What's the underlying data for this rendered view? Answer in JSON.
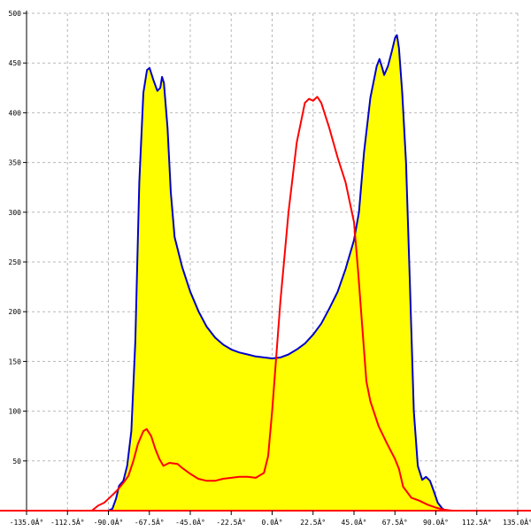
{
  "chart_data": {
    "type": "area",
    "title": "",
    "xlabel": "",
    "ylabel": "",
    "xlim": [
      -135,
      135
    ],
    "ylim": [
      0,
      500
    ],
    "grid": true,
    "x_ticks": [
      -135,
      -112.5,
      -90,
      -67.5,
      -45,
      -22.5,
      0,
      22.5,
      45,
      67.5,
      90,
      112.5,
      135
    ],
    "x_tick_labels": [
      "-135.0Â°",
      "-112.5Â°",
      "-90.0Â°",
      "-67.5Â°",
      "-45.0Â°",
      "-22.5Â°",
      "0.0Â°",
      "22.5Â°",
      "45.0Â°",
      "67.5Â°",
      "90.0Â°",
      "112.5Â°",
      "135.0Â°"
    ],
    "y_ticks": [
      50,
      100,
      150,
      200,
      250,
      300,
      350,
      400,
      450,
      500
    ],
    "y_tick_labels": [
      "50",
      "100",
      "150",
      "200",
      "250",
      "300",
      "350",
      "400",
      "450",
      "500"
    ],
    "series": [
      {
        "color": "#0000cc",
        "fill": "#ffff00",
        "points": [
          [
            -135,
            0
          ],
          [
            -90,
            0
          ],
          [
            -87.8,
            2
          ],
          [
            -85.8,
            12
          ],
          [
            -84.1,
            25
          ],
          [
            -81.8,
            30
          ],
          [
            -79.7,
            45
          ],
          [
            -77.4,
            80
          ],
          [
            -75.2,
            170
          ],
          [
            -73.0,
            330
          ],
          [
            -70.8,
            420
          ],
          [
            -68.8,
            443
          ],
          [
            -67.4,
            445
          ],
          [
            -65.3,
            433
          ],
          [
            -63.1,
            422
          ],
          [
            -61.5,
            425
          ],
          [
            -60.5,
            436
          ],
          [
            -59.5,
            430
          ],
          [
            -57.5,
            385
          ],
          [
            -55.7,
            320
          ],
          [
            -53.6,
            275
          ],
          [
            -49.5,
            245
          ],
          [
            -45.0,
            220
          ],
          [
            -40.4,
            200
          ],
          [
            -36.0,
            185
          ],
          [
            -31.4,
            174
          ],
          [
            -27.0,
            167
          ],
          [
            -22.5,
            162
          ],
          [
            -18.0,
            159
          ],
          [
            -13.5,
            157
          ],
          [
            -9.0,
            155
          ],
          [
            -4.5,
            154
          ],
          [
            0,
            153
          ],
          [
            4.5,
            154
          ],
          [
            9.0,
            157
          ],
          [
            13.5,
            162
          ],
          [
            18.0,
            168
          ],
          [
            22.5,
            177
          ],
          [
            27.0,
            188
          ],
          [
            31.4,
            203
          ],
          [
            36.0,
            220
          ],
          [
            40.4,
            243
          ],
          [
            45.0,
            272
          ],
          [
            47.7,
            300
          ],
          [
            50.5,
            360
          ],
          [
            54.0,
            415
          ],
          [
            57.5,
            447
          ],
          [
            59.0,
            454
          ],
          [
            60.5,
            445
          ],
          [
            61.6,
            438
          ],
          [
            63.7,
            447
          ],
          [
            65.8,
            462
          ],
          [
            67.5,
            475
          ],
          [
            68.6,
            478
          ],
          [
            69.7,
            465
          ],
          [
            71.5,
            420
          ],
          [
            73.6,
            350
          ],
          [
            75.7,
            230
          ],
          [
            77.9,
            100
          ],
          [
            80.1,
            45
          ],
          [
            82.5,
            31
          ],
          [
            84.6,
            34
          ],
          [
            86.8,
            30
          ],
          [
            88.8,
            20
          ],
          [
            91.0,
            8
          ],
          [
            93.6,
            2
          ],
          [
            95.8,
            0
          ],
          [
            135,
            0
          ]
        ]
      },
      {
        "color": "#ff0000",
        "fill": "none",
        "points": [
          [
            -135,
            0
          ],
          [
            -99.1,
            0
          ],
          [
            -95.7,
            5
          ],
          [
            -92.3,
            8
          ],
          [
            -88.8,
            14
          ],
          [
            -85.4,
            20
          ],
          [
            -81.8,
            28
          ],
          [
            -79.0,
            35
          ],
          [
            -76.3,
            50
          ],
          [
            -73.8,
            67
          ],
          [
            -70.8,
            80
          ],
          [
            -69.0,
            82
          ],
          [
            -66.5,
            75
          ],
          [
            -64.2,
            62
          ],
          [
            -62.0,
            52
          ],
          [
            -59.8,
            45
          ],
          [
            -56.5,
            48
          ],
          [
            -52.0,
            47
          ],
          [
            -49.5,
            43
          ],
          [
            -45.0,
            37
          ],
          [
            -40.6,
            32
          ],
          [
            -36.0,
            30
          ],
          [
            -31.4,
            30
          ],
          [
            -27.0,
            32
          ],
          [
            -22.5,
            33
          ],
          [
            -18.0,
            34
          ],
          [
            -13.5,
            34
          ],
          [
            -9.0,
            33
          ],
          [
            -4.5,
            38
          ],
          [
            -2.2,
            55
          ],
          [
            0,
            100
          ],
          [
            4.5,
            210
          ],
          [
            9.0,
            300
          ],
          [
            13.5,
            370
          ],
          [
            18.0,
            410
          ],
          [
            20.3,
            414
          ],
          [
            22.5,
            412
          ],
          [
            24.8,
            416
          ],
          [
            27.0,
            410
          ],
          [
            31.4,
            385
          ],
          [
            36.0,
            355
          ],
          [
            40.4,
            330
          ],
          [
            45.0,
            290
          ],
          [
            47.3,
            240
          ],
          [
            49.5,
            185
          ],
          [
            51.8,
            130
          ],
          [
            54.0,
            110
          ],
          [
            58.5,
            85
          ],
          [
            63.0,
            68
          ],
          [
            67.5,
            52
          ],
          [
            69.7,
            42
          ],
          [
            72.0,
            24
          ],
          [
            76.5,
            13
          ],
          [
            81.0,
            10
          ],
          [
            85.5,
            6
          ],
          [
            90.0,
            3
          ],
          [
            94.5,
            1
          ],
          [
            99.0,
            0
          ],
          [
            135,
            0
          ]
        ]
      }
    ]
  }
}
